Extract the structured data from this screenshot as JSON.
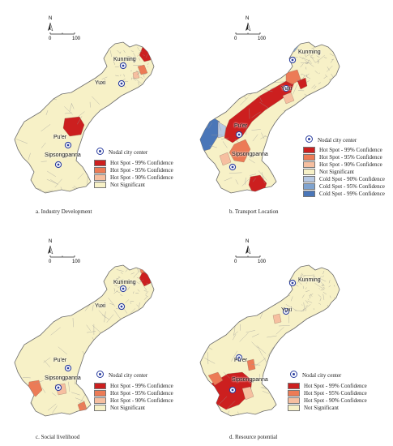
{
  "colors": {
    "base": "#f7f1c7",
    "hot99": "#cc1f1f",
    "hot95": "#ec7b56",
    "hot90": "#f6bfa0",
    "not": "#f7f1c7",
    "cold90": "#b6c8e3",
    "cold95": "#7fa3cf",
    "cold99": "#4a76b8",
    "node": "#2c3fa0"
  },
  "north_label": "N",
  "scale": {
    "start": "0",
    "end": "100"
  },
  "cities": {
    "kunming": "Kunming",
    "yuxi": "Yuxi",
    "puer": "Pu'er",
    "sipsong": "Sipsongpanna"
  },
  "legend": {
    "node": "Nodal city center",
    "hot99": "Hot Spot - 99% Confidence",
    "hot95": "Hot Spot - 95% Confidence",
    "hot90": "Hot Spot - 90% Confidence",
    "not": "Not Significant",
    "cold90": "Cold Spot - 90% Confidence",
    "cold95": "Cold Spot - 95% Confidence",
    "cold99": "Cold Spot - 99% Confidence"
  },
  "panels": [
    {
      "caption": "a. Industry Development"
    },
    {
      "caption": "b. Transport Location"
    },
    {
      "caption": "c. Social livelihood"
    },
    {
      "caption": "d. Resource potential"
    }
  ]
}
